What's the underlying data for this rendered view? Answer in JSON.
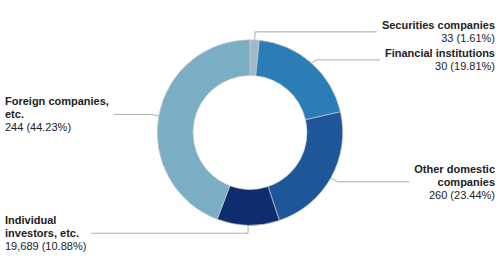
{
  "chart_data": {
    "type": "pie",
    "categories": [
      "Securities companies",
      "Financial institutions",
      "Other domestic\ncompanies",
      "Individual\ninvestors, etc.",
      "Foreign companies,\netc."
    ],
    "values": [
      1.61,
      19.81,
      23.44,
      10.88,
      44.23
    ],
    "value_labels": [
      "33 (1.61%)",
      "30 (19.81%)",
      "260 (23.44%)",
      "19,689 (10.88%)",
      "244 (44.23%)"
    ],
    "colors": [
      "#9eb8cc",
      "#2b7db5",
      "#1d5799",
      "#0d2d6e",
      "#7aaec5"
    ],
    "data_labels": true,
    "legend": false
  }
}
